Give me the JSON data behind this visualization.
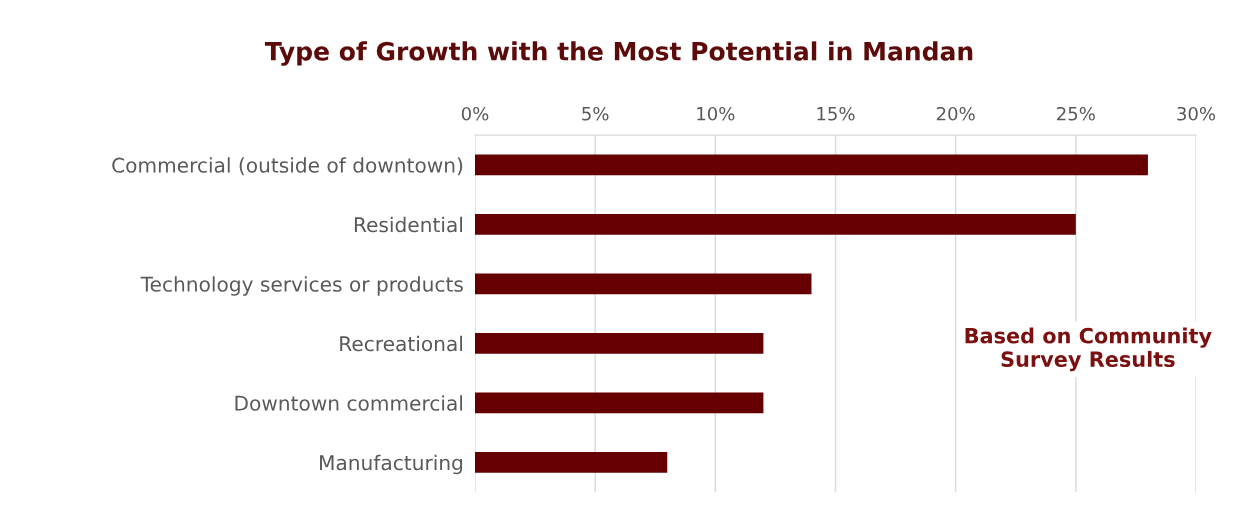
{
  "chart_data": {
    "type": "bar",
    "orientation": "horizontal",
    "title": "Type of Growth with the Most Potential in Mandan",
    "categories": [
      "Commercial (outside of downtown)",
      "Residential",
      "Technology services or products",
      "Recreational",
      "Downtown commercial",
      "Manufacturing"
    ],
    "values": [
      28,
      25,
      14,
      12,
      12,
      8
    ],
    "color": "#660000",
    "xlim": [
      0,
      30
    ],
    "xticks": [
      {
        "value": 0,
        "label": "0%"
      },
      {
        "value": 5,
        "label": "5%"
      },
      {
        "value": 10,
        "label": "10%"
      },
      {
        "value": 15,
        "label": "15%"
      },
      {
        "value": 20,
        "label": "20%"
      },
      {
        "value": 25,
        "label": "25%"
      },
      {
        "value": 30,
        "label": "30%"
      }
    ],
    "grid": "x",
    "annotations": [
      "Based on Community Survey Results"
    ]
  }
}
